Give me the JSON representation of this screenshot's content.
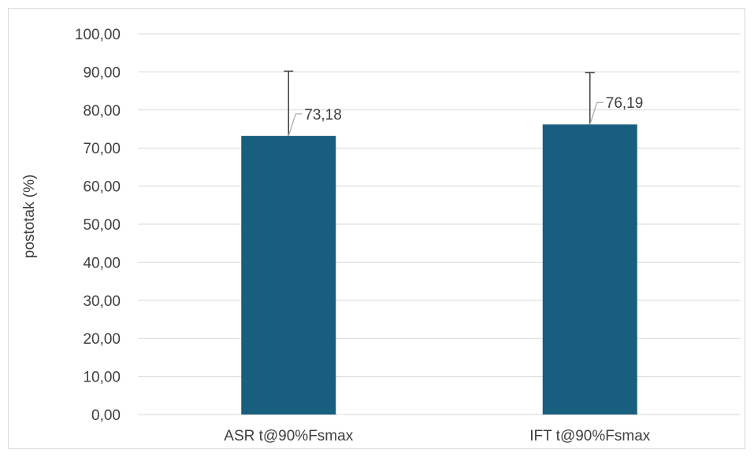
{
  "chart_data": {
    "type": "bar",
    "title": "",
    "xlabel": "",
    "ylabel": "postotak (%)",
    "categories": [
      "ASR t@90%Fsmax",
      "IFT t@90%Fsmax"
    ],
    "series": [
      {
        "values": [
          73.18,
          76.19
        ],
        "error_upper": [
          90.2,
          89.8
        ],
        "data_labels": [
          "73,18",
          "76,19"
        ],
        "color": "#175e7f"
      }
    ],
    "ylim": [
      0,
      100
    ],
    "yticks": [
      0,
      10,
      20,
      30,
      40,
      50,
      60,
      70,
      80,
      90,
      100
    ],
    "ytick_labels": [
      "0,00",
      "10,00",
      "20,00",
      "30,00",
      "40,00",
      "50,00",
      "60,00",
      "70,00",
      "80,00",
      "90,00",
      "100,00"
    ],
    "grid": true,
    "legend": "none",
    "colors": {
      "bar": "#175e7f",
      "grid": "#d9d9d9",
      "text": "#404040",
      "error": "#404040",
      "leader": "#a6a6a6"
    }
  }
}
